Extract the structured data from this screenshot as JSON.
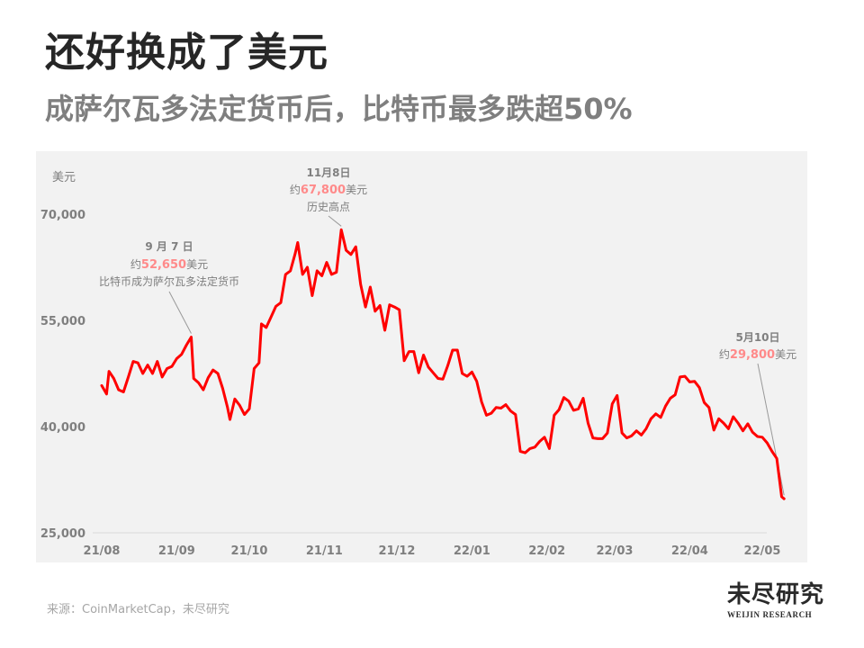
{
  "header": {
    "title": "还好换成了美元",
    "subtitle": "成萨尔瓦多法定货币后，比特币最多跌超50%"
  },
  "chart_data": {
    "type": "line",
    "ylabel": "美元",
    "ylim": [
      25000,
      72000
    ],
    "yticks": [
      {
        "value": 25000,
        "label": "25,000"
      },
      {
        "value": 40000,
        "label": "40,000"
      },
      {
        "value": 55000,
        "label": "55,000"
      },
      {
        "value": 70000,
        "label": "70,000"
      }
    ],
    "xticks": [
      {
        "date": "2021-08-01",
        "label": "21/08"
      },
      {
        "date": "2021-09-01",
        "label": "21/09"
      },
      {
        "date": "2021-10-01",
        "label": "21/10"
      },
      {
        "date": "2021-11-01",
        "label": "21/11"
      },
      {
        "date": "2021-12-01",
        "label": "21/12"
      },
      {
        "date": "2022-01-01",
        "label": "22/01"
      },
      {
        "date": "2022-02-01",
        "label": "22/02"
      },
      {
        "date": "2022-03-01",
        "label": "22/03"
      },
      {
        "date": "2022-04-01",
        "label": "22/04"
      },
      {
        "date": "2022-05-01",
        "label": "22/05"
      }
    ],
    "series": [
      {
        "color": "#ff0000",
        "points": [
          [
            "2021-08-01",
            45800
          ],
          [
            "2021-08-03",
            44600
          ],
          [
            "2021-08-04",
            47800
          ],
          [
            "2021-08-06",
            46800
          ],
          [
            "2021-08-08",
            45200
          ],
          [
            "2021-08-10",
            44900
          ],
          [
            "2021-08-12",
            47000
          ],
          [
            "2021-08-14",
            49200
          ],
          [
            "2021-08-16",
            49000
          ],
          [
            "2021-08-18",
            47500
          ],
          [
            "2021-08-20",
            48700
          ],
          [
            "2021-08-22",
            47500
          ],
          [
            "2021-08-24",
            49200
          ],
          [
            "2021-08-26",
            47000
          ],
          [
            "2021-08-28",
            48200
          ],
          [
            "2021-08-30",
            48500
          ],
          [
            "2021-09-01",
            49600
          ],
          [
            "2021-09-03",
            50200
          ],
          [
            "2021-09-05",
            51500
          ],
          [
            "2021-09-07",
            52650
          ],
          [
            "2021-09-08",
            46800
          ],
          [
            "2021-09-10",
            46200
          ],
          [
            "2021-09-12",
            45200
          ],
          [
            "2021-09-14",
            46900
          ],
          [
            "2021-09-16",
            48000
          ],
          [
            "2021-09-18",
            47500
          ],
          [
            "2021-09-20",
            45400
          ],
          [
            "2021-09-22",
            42700
          ],
          [
            "2021-09-23",
            41000
          ],
          [
            "2021-09-25",
            43900
          ],
          [
            "2021-09-27",
            43000
          ],
          [
            "2021-09-29",
            41700
          ],
          [
            "2021-10-01",
            42500
          ],
          [
            "2021-10-03",
            48200
          ],
          [
            "2021-10-05",
            49000
          ],
          [
            "2021-10-06",
            54500
          ],
          [
            "2021-10-08",
            54000
          ],
          [
            "2021-10-10",
            55500
          ],
          [
            "2021-10-12",
            57000
          ],
          [
            "2021-10-14",
            57500
          ],
          [
            "2021-10-16",
            61500
          ],
          [
            "2021-10-18",
            62000
          ],
          [
            "2021-10-20",
            64500
          ],
          [
            "2021-10-21",
            66000
          ],
          [
            "2021-10-23",
            61500
          ],
          [
            "2021-10-25",
            62500
          ],
          [
            "2021-10-27",
            58500
          ],
          [
            "2021-10-29",
            62000
          ],
          [
            "2021-10-31",
            61300
          ],
          [
            "2021-11-02",
            63200
          ],
          [
            "2021-11-04",
            61500
          ],
          [
            "2021-11-06",
            61800
          ],
          [
            "2021-11-08",
            67800
          ],
          [
            "2021-11-10",
            64900
          ],
          [
            "2021-11-12",
            64300
          ],
          [
            "2021-11-14",
            65400
          ],
          [
            "2021-11-16",
            60100
          ],
          [
            "2021-11-18",
            56900
          ],
          [
            "2021-11-20",
            59700
          ],
          [
            "2021-11-22",
            56300
          ],
          [
            "2021-11-24",
            57100
          ],
          [
            "2021-11-26",
            53600
          ],
          [
            "2021-11-28",
            57200
          ],
          [
            "2021-11-30",
            56900
          ],
          [
            "2021-12-02",
            56500
          ],
          [
            "2021-12-04",
            49300
          ],
          [
            "2021-12-06",
            50600
          ],
          [
            "2021-12-08",
            50600
          ],
          [
            "2021-12-10",
            47600
          ],
          [
            "2021-12-12",
            50100
          ],
          [
            "2021-12-14",
            48400
          ],
          [
            "2021-12-16",
            47600
          ],
          [
            "2021-12-18",
            46800
          ],
          [
            "2021-12-20",
            46700
          ],
          [
            "2021-12-22",
            48600
          ],
          [
            "2021-12-24",
            50800
          ],
          [
            "2021-12-26",
            50800
          ],
          [
            "2021-12-28",
            47500
          ],
          [
            "2021-12-30",
            47100
          ],
          [
            "2022-01-01",
            47700
          ],
          [
            "2022-01-03",
            46400
          ],
          [
            "2022-01-05",
            43500
          ],
          [
            "2022-01-07",
            41600
          ],
          [
            "2022-01-09",
            41900
          ],
          [
            "2022-01-11",
            42700
          ],
          [
            "2022-01-13",
            42600
          ],
          [
            "2022-01-15",
            43100
          ],
          [
            "2022-01-17",
            42200
          ],
          [
            "2022-01-19",
            41700
          ],
          [
            "2022-01-21",
            36500
          ],
          [
            "2022-01-23",
            36300
          ],
          [
            "2022-01-25",
            36900
          ],
          [
            "2022-01-27",
            37100
          ],
          [
            "2022-01-29",
            37900
          ],
          [
            "2022-01-31",
            38500
          ],
          [
            "2022-02-02",
            36900
          ],
          [
            "2022-02-04",
            41600
          ],
          [
            "2022-02-06",
            42400
          ],
          [
            "2022-02-08",
            44100
          ],
          [
            "2022-02-10",
            43600
          ],
          [
            "2022-02-12",
            42300
          ],
          [
            "2022-02-14",
            42500
          ],
          [
            "2022-02-16",
            44000
          ],
          [
            "2022-02-18",
            40500
          ],
          [
            "2022-02-20",
            38400
          ],
          [
            "2022-02-22",
            38300
          ],
          [
            "2022-02-24",
            38300
          ],
          [
            "2022-02-26",
            39100
          ],
          [
            "2022-02-28",
            43200
          ],
          [
            "2022-03-02",
            44400
          ],
          [
            "2022-03-04",
            39100
          ],
          [
            "2022-03-06",
            38400
          ],
          [
            "2022-03-08",
            38700
          ],
          [
            "2022-03-10",
            39400
          ],
          [
            "2022-03-12",
            38800
          ],
          [
            "2022-03-14",
            39700
          ],
          [
            "2022-03-16",
            41100
          ],
          [
            "2022-03-18",
            41800
          ],
          [
            "2022-03-20",
            41300
          ],
          [
            "2022-03-22",
            42900
          ],
          [
            "2022-03-24",
            44000
          ],
          [
            "2022-03-26",
            44500
          ],
          [
            "2022-03-28",
            47000
          ],
          [
            "2022-03-30",
            47100
          ],
          [
            "2022-04-01",
            46300
          ],
          [
            "2022-04-03",
            46400
          ],
          [
            "2022-04-05",
            45500
          ],
          [
            "2022-04-07",
            43400
          ],
          [
            "2022-04-09",
            42700
          ],
          [
            "2022-04-11",
            39500
          ],
          [
            "2022-04-13",
            41100
          ],
          [
            "2022-04-15",
            40500
          ],
          [
            "2022-04-17",
            39700
          ],
          [
            "2022-04-19",
            41400
          ],
          [
            "2022-04-21",
            40500
          ],
          [
            "2022-04-23",
            39400
          ],
          [
            "2022-04-25",
            40400
          ],
          [
            "2022-04-27",
            39200
          ],
          [
            "2022-04-29",
            38600
          ],
          [
            "2022-05-01",
            38500
          ],
          [
            "2022-05-03",
            37700
          ],
          [
            "2022-05-05",
            36500
          ],
          [
            "2022-05-07",
            35500
          ],
          [
            "2022-05-09",
            30100
          ],
          [
            "2022-05-10",
            29800
          ]
        ]
      }
    ],
    "annotations": [
      {
        "date": "2021-09-07",
        "value": 52650,
        "lines": [
          "9 月 7 日",
          "约52,650美元",
          "比特币成为萨尔瓦多法定货币"
        ],
        "prefix": "约",
        "amount": "52,650",
        "suffix": "美元"
      },
      {
        "date": "2021-11-08",
        "value": 67800,
        "lines": [
          "11月8日",
          "约67,800美元",
          "历史高点"
        ],
        "prefix": "约",
        "amount": "67,800",
        "suffix": "美元"
      },
      {
        "date": "2022-05-10",
        "value": 29800,
        "lines": [
          "5月10日",
          "约29,800美元"
        ],
        "prefix": "约",
        "amount": "29,800",
        "suffix": "美元"
      }
    ]
  },
  "ann": {
    "a1_date": "9 月 7 日",
    "a1_prefix": "约",
    "a1_amount": "52,650",
    "a1_suffix": "美元",
    "a1_note": "比特币成为萨尔瓦多法定货币",
    "a2_date": "11月8日",
    "a2_prefix": "约",
    "a2_amount": "67,800",
    "a2_suffix": "美元",
    "a2_note": "历史高点",
    "a3_date": "5月10日",
    "a3_prefix": "约",
    "a3_amount": "29,800",
    "a3_suffix": "美元"
  },
  "footer": {
    "source": "来源：CoinMarketCap，未尽研究",
    "logo_cn": "未尽研究",
    "logo_en": "WEIJIN RESEARCH"
  }
}
